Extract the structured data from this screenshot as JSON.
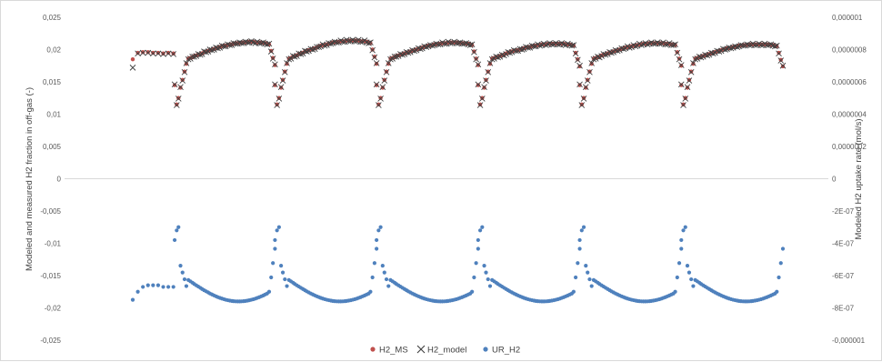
{
  "chart_data": {
    "type": "scatter",
    "title": "",
    "ylabel": "Modeled and measured H2 fraction in off-gas (-)",
    "y2label": "Modeled H2 uptake rate (mol/s)",
    "ylim": [
      -0.025,
      0.025
    ],
    "y2lim": [
      -1e-06,
      1e-06
    ],
    "y_ticks": [
      "0,025",
      "0,02",
      "0,015",
      "0,01",
      "0,005",
      "0",
      "-0,005",
      "-0,01",
      "-0,015",
      "-0,02",
      "-0,025"
    ],
    "y2_ticks": [
      "0,000001",
      "0,0000008",
      "0,0000006",
      "0,0000004",
      "0,0000002",
      "0",
      "-2E-07",
      "-4E-07",
      "-6E-07",
      "-8E-07",
      "-0,000001"
    ],
    "legend_position": "bottom",
    "grid": false,
    "series": [
      {
        "name": "H2_MS",
        "marker": "circle",
        "color": "#c0504d",
        "axis": "left",
        "x": [],
        "values": []
      },
      {
        "name": "H2_model",
        "marker": "x",
        "color": "#404040",
        "axis": "left",
        "x": [],
        "values": []
      },
      {
        "name": "UR_H2",
        "marker": "circle",
        "color": "#4f81bd",
        "axis": "right",
        "x": [],
        "values": []
      }
    ]
  }
}
